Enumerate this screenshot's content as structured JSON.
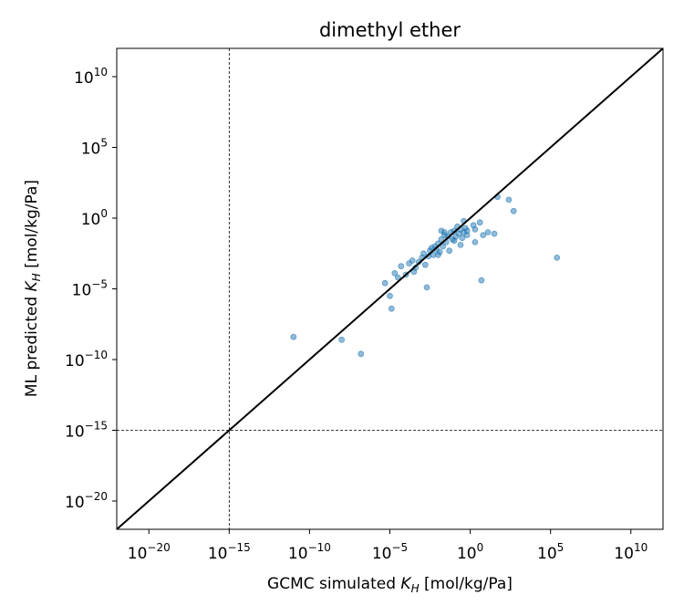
{
  "chart_data": {
    "type": "scatter",
    "title": "dimethyl ether",
    "xlabel": {
      "prefix": "GCMC simulated ",
      "var": "K",
      "sub": "H",
      "suffix": " [mol/kg/Pa]"
    },
    "ylabel": {
      "prefix": "ML predicted ",
      "var": "K",
      "sub": "H",
      "suffix": " [mol/kg/Pa]"
    },
    "scale": "log10",
    "xlim_exp": [
      -22,
      12
    ],
    "ylim_exp": [
      -22,
      12
    ],
    "xticks_exp": [
      -20,
      -15,
      -10,
      -5,
      0,
      5,
      10
    ],
    "yticks_exp": [
      -20,
      -15,
      -10,
      -5,
      0,
      5,
      10
    ],
    "point_color": "#1f77b4",
    "reference_line": {
      "type": "y=x",
      "color": "#000000"
    },
    "threshold_lines": {
      "x_exp": -15,
      "y_exp": -15,
      "style": "dashed"
    },
    "grid": false,
    "points_log10": [
      [
        -11.0,
        -8.4
      ],
      [
        -8.0,
        -8.6
      ],
      [
        -6.8,
        -9.6
      ],
      [
        -5.3,
        -4.6
      ],
      [
        -5.0,
        -5.5
      ],
      [
        -4.9,
        -6.4
      ],
      [
        -4.7,
        -3.9
      ],
      [
        -4.5,
        -4.2
      ],
      [
        -4.3,
        -3.4
      ],
      [
        -4.0,
        -4.0
      ],
      [
        -3.8,
        -3.2
      ],
      [
        -3.6,
        -3.0
      ],
      [
        -3.4,
        -3.5
      ],
      [
        -3.2,
        -3.1
      ],
      [
        -3.0,
        -2.8
      ],
      [
        -2.8,
        -3.3
      ],
      [
        -2.6,
        -2.7
      ],
      [
        -2.9,
        -2.5
      ],
      [
        -2.5,
        -2.3
      ],
      [
        -2.3,
        -2.6
      ],
      [
        -2.1,
        -2.2
      ],
      [
        -2.7,
        -4.9
      ],
      [
        -2.2,
        -2.0
      ],
      [
        -2.0,
        -1.8
      ],
      [
        -1.9,
        -2.4
      ],
      [
        -1.8,
        -1.5
      ],
      [
        -1.7,
        -2.0
      ],
      [
        -1.6,
        -1.2
      ],
      [
        -1.5,
        -1.7
      ],
      [
        -1.4,
        -1.3
      ],
      [
        -1.3,
        -2.3
      ],
      [
        -1.2,
        -1.0
      ],
      [
        -1.1,
        -1.5
      ],
      [
        -1.0,
        -0.9
      ],
      [
        -0.9,
        -1.3
      ],
      [
        -0.8,
        -0.6
      ],
      [
        -0.7,
        -1.1
      ],
      [
        -0.6,
        -0.8
      ],
      [
        -0.5,
        -1.4
      ],
      [
        -0.4,
        -1.0
      ],
      [
        -0.3,
        -0.7
      ],
      [
        -0.2,
        -1.2
      ],
      [
        -1.8,
        -0.9
      ],
      [
        -0.2,
        -0.9
      ],
      [
        0.2,
        -0.5
      ],
      [
        0.3,
        -1.7
      ],
      [
        -2.4,
        -2.1
      ],
      [
        -2.0,
        -2.6
      ],
      [
        -3.5,
        -3.8
      ],
      [
        -1.6,
        -1.0
      ],
      [
        -1.0,
        -1.6
      ],
      [
        -0.6,
        -1.9
      ],
      [
        -0.4,
        -0.2
      ],
      [
        0.3,
        -0.8
      ],
      [
        0.6,
        -0.3
      ],
      [
        0.7,
        -4.4
      ],
      [
        0.8,
        -1.2
      ],
      [
        1.1,
        -1.0
      ],
      [
        1.5,
        -1.1
      ],
      [
        1.7,
        1.5
      ],
      [
        2.4,
        1.3
      ],
      [
        2.7,
        0.5
      ],
      [
        5.4,
        -2.8
      ]
    ]
  }
}
